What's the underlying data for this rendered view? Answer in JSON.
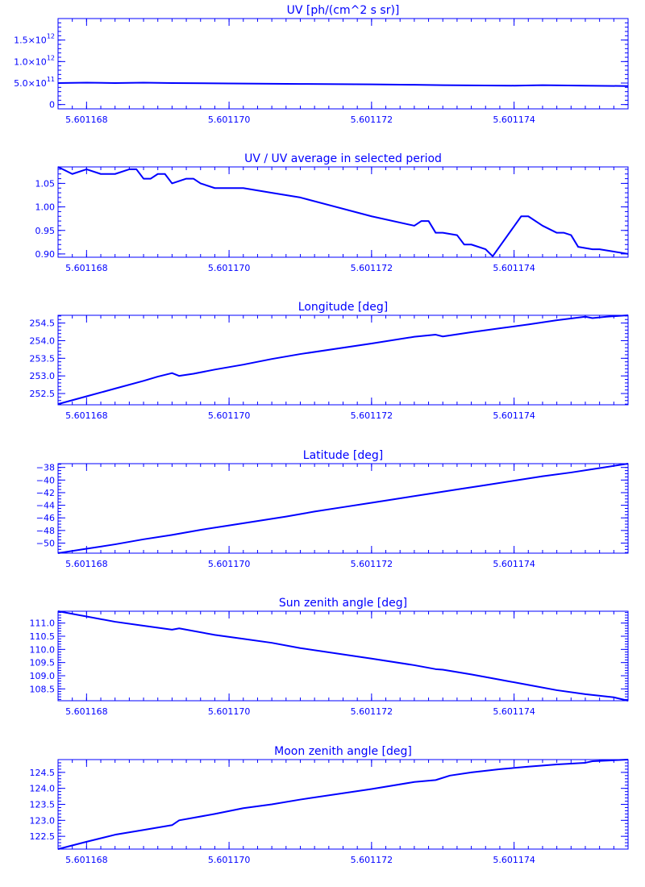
{
  "colors": {
    "line": "#0000ff",
    "background": "#ffffff"
  },
  "x_ticks": [
    "5.601168",
    "5.601170",
    "5.601172",
    "5.601174"
  ],
  "chart_data": [
    {
      "type": "line",
      "title": "UV [ph/(cm^2 s sr)]",
      "xlim": [
        5.6011676,
        5.6011756
      ],
      "ylim": [
        -100000000000.0,
        2000000000000.0
      ],
      "yticks": [
        {
          "value": 0,
          "label": "0"
        },
        {
          "value": 500000000000.0,
          "label": "5.0×10",
          "exp": "11"
        },
        {
          "value": 1000000000000.0,
          "label": "1.0×10",
          "exp": "12"
        },
        {
          "value": 1500000000000.0,
          "label": "1.5×10",
          "exp": "12"
        }
      ],
      "minor_y": 100000000000.0,
      "x": [
        5.6011676,
        5.601168,
        5.6011684,
        5.6011688,
        5.6011692,
        5.60117,
        5.601171,
        5.601172,
        5.6011726,
        5.601173,
        5.601174,
        5.6011744,
        5.601175,
        5.6011756
      ],
      "y": [
        500000000000.0,
        510000000000.0,
        500000000000.0,
        510000000000.0,
        500000000000.0,
        490000000000.0,
        480000000000.0,
        470000000000.0,
        460000000000.0,
        450000000000.0,
        440000000000.0,
        450000000000.0,
        440000000000.0,
        430000000000.0
      ]
    },
    {
      "type": "line",
      "title": "UV / UV average in selected period",
      "xlim": [
        5.6011676,
        5.6011756
      ],
      "ylim": [
        0.893,
        1.085
      ],
      "yticks": [
        {
          "value": 0.9,
          "label": "0.90"
        },
        {
          "value": 0.95,
          "label": "0.95"
        },
        {
          "value": 1.0,
          "label": "1.00"
        },
        {
          "value": 1.05,
          "label": "1.05"
        }
      ],
      "minor_y": 0.01,
      "x": [
        5.6011676,
        5.6011678,
        5.601168,
        5.6011682,
        5.6011684,
        5.6011686,
        5.6011687,
        5.6011688,
        5.6011689,
        5.601169,
        5.6011691,
        5.6011692,
        5.6011694,
        5.6011695,
        5.6011696,
        5.6011698,
        5.6011702,
        5.6011706,
        5.601171,
        5.601172,
        5.6011726,
        5.6011727,
        5.6011728,
        5.6011729,
        5.601173,
        5.6011732,
        5.6011733,
        5.6011734,
        5.6011736,
        5.6011737,
        5.6011741,
        5.6011742,
        5.6011744,
        5.6011746,
        5.6011747,
        5.6011748,
        5.6011749,
        5.6011751,
        5.6011752,
        5.6011754,
        5.6011756
      ],
      "y": [
        1.085,
        1.07,
        1.08,
        1.07,
        1.07,
        1.08,
        1.08,
        1.06,
        1.06,
        1.07,
        1.07,
        1.05,
        1.06,
        1.06,
        1.05,
        1.04,
        1.04,
        1.03,
        1.02,
        0.98,
        0.96,
        0.97,
        0.97,
        0.945,
        0.945,
        0.94,
        0.92,
        0.92,
        0.91,
        0.895,
        0.98,
        0.98,
        0.96,
        0.945,
        0.945,
        0.94,
        0.915,
        0.91,
        0.91,
        0.905,
        0.9
      ]
    },
    {
      "type": "line",
      "title": "Longitude [deg]",
      "xlim": [
        5.6011676,
        5.6011756
      ],
      "ylim": [
        252.18,
        254.72
      ],
      "yticks": [
        {
          "value": 252.5,
          "label": "252.5"
        },
        {
          "value": 253.0,
          "label": "253.0"
        },
        {
          "value": 253.5,
          "label": "253.5"
        },
        {
          "value": 254.0,
          "label": "254.0"
        },
        {
          "value": 254.5,
          "label": "254.5"
        }
      ],
      "minor_y": 0.1,
      "x": [
        5.6011676,
        5.601168,
        5.6011684,
        5.6011688,
        5.601169,
        5.6011692,
        5.6011693,
        5.6011695,
        5.6011698,
        5.6011702,
        5.6011706,
        5.601171,
        5.601172,
        5.6011726,
        5.6011729,
        5.601173,
        5.6011732,
        5.6011734,
        5.6011738,
        5.6011742,
        5.6011746,
        5.601175,
        5.6011751,
        5.6011753,
        5.6011756
      ],
      "y": [
        252.2,
        252.42,
        252.64,
        252.86,
        252.98,
        253.08,
        253.0,
        253.06,
        253.18,
        253.32,
        253.48,
        253.62,
        253.92,
        254.11,
        254.17,
        254.12,
        254.18,
        254.24,
        254.35,
        254.46,
        254.58,
        254.68,
        254.64,
        254.68,
        254.72
      ]
    },
    {
      "type": "line",
      "title": "Latitude [deg]",
      "xlim": [
        5.6011676,
        5.6011756
      ],
      "ylim": [
        -51.6,
        -37.4
      ],
      "yticks": [
        {
          "value": -50,
          "label": "−50"
        },
        {
          "value": -48,
          "label": "−48"
        },
        {
          "value": -46,
          "label": "−46"
        },
        {
          "value": -44,
          "label": "−44"
        },
        {
          "value": -42,
          "label": "−42"
        },
        {
          "value": -40,
          "label": "−40"
        },
        {
          "value": -38,
          "label": "−38"
        }
      ],
      "minor_y": 0.5,
      "x": [
        5.6011676,
        5.601168,
        5.6011684,
        5.6011688,
        5.6011692,
        5.6011696,
        5.60117,
        5.6011704,
        5.6011708,
        5.6011712,
        5.6011716,
        5.601172,
        5.6011724,
        5.6011728,
        5.6011732,
        5.6011736,
        5.601174,
        5.6011744,
        5.6011748,
        5.6011752,
        5.6011756
      ],
      "y": [
        -51.6,
        -50.9,
        -50.2,
        -49.4,
        -48.7,
        -47.9,
        -47.2,
        -46.5,
        -45.8,
        -45.0,
        -44.3,
        -43.6,
        -42.9,
        -42.2,
        -41.5,
        -40.8,
        -40.1,
        -39.4,
        -38.8,
        -38.1,
        -37.4
      ]
    },
    {
      "type": "line",
      "title": "Sun zenith angle [deg]",
      "xlim": [
        5.6011676,
        5.6011756
      ],
      "ylim": [
        108.05,
        111.45
      ],
      "yticks": [
        {
          "value": 108.5,
          "label": "108.5"
        },
        {
          "value": 109.0,
          "label": "109.0"
        },
        {
          "value": 109.5,
          "label": "109.5"
        },
        {
          "value": 110.0,
          "label": "110.0"
        },
        {
          "value": 110.5,
          "label": "110.5"
        },
        {
          "value": 111.0,
          "label": "111.0"
        }
      ],
      "minor_y": 0.1,
      "x": [
        5.6011676,
        5.601168,
        5.6011684,
        5.6011688,
        5.6011692,
        5.6011693,
        5.6011694,
        5.6011698,
        5.6011702,
        5.6011706,
        5.601171,
        5.601172,
        5.6011726,
        5.6011729,
        5.601173,
        5.6011734,
        5.6011738,
        5.6011742,
        5.6011746,
        5.601175,
        5.6011754,
        5.6011756
      ],
      "y": [
        111.45,
        111.25,
        111.05,
        110.9,
        110.75,
        110.8,
        110.75,
        110.55,
        110.4,
        110.25,
        110.05,
        109.65,
        109.4,
        109.25,
        109.23,
        109.05,
        108.85,
        108.65,
        108.45,
        108.3,
        108.18,
        108.05
      ]
    },
    {
      "type": "line",
      "title": "Moon zenith angle [deg]",
      "xlim": [
        5.6011676,
        5.6011756
      ],
      "ylim": [
        122.1,
        124.9
      ],
      "yticks": [
        {
          "value": 122.5,
          "label": "122.5"
        },
        {
          "value": 123.0,
          "label": "123.0"
        },
        {
          "value": 123.5,
          "label": "123.5"
        },
        {
          "value": 124.0,
          "label": "124.0"
        },
        {
          "value": 124.5,
          "label": "124.5"
        }
      ],
      "minor_y": 0.1,
      "x": [
        5.6011676,
        5.601168,
        5.6011684,
        5.6011688,
        5.6011692,
        5.6011693,
        5.6011698,
        5.6011702,
        5.6011706,
        5.601171,
        5.601172,
        5.6011726,
        5.6011729,
        5.6011731,
        5.6011734,
        5.6011738,
        5.6011742,
        5.6011746,
        5.601175,
        5.6011751,
        5.6011753,
        5.6011756
      ],
      "y": [
        122.1,
        122.33,
        122.55,
        122.7,
        122.85,
        123.0,
        123.2,
        123.38,
        123.5,
        123.65,
        123.98,
        124.2,
        124.26,
        124.4,
        124.5,
        124.6,
        124.68,
        124.75,
        124.8,
        124.85,
        124.87,
        124.9
      ]
    }
  ]
}
